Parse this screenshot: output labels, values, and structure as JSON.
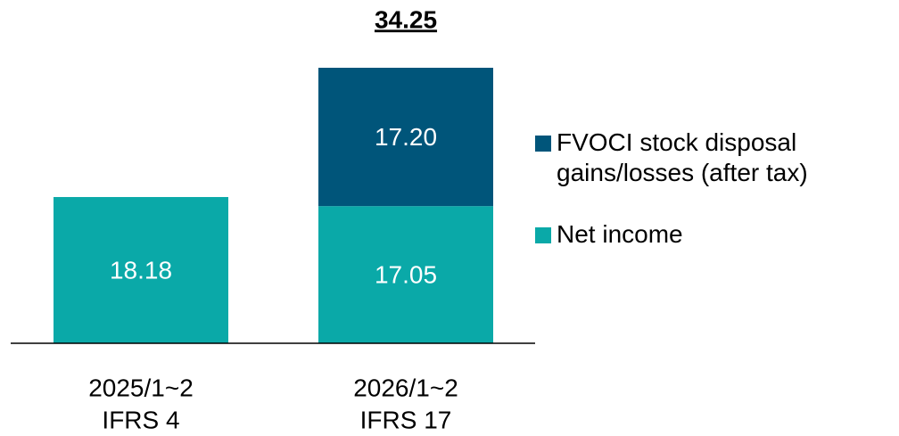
{
  "chart_data": {
    "type": "stacked_bar",
    "categories": [
      [
        "2025/1~2",
        "IFRS 4"
      ],
      [
        "2026/1~2",
        "IFRS 17"
      ]
    ],
    "series": [
      {
        "name": "Net income",
        "color": "#0aa9a8",
        "values": [
          18.18,
          17.05
        ]
      },
      {
        "name": "FVOCI stock disposal gains/losses (after tax)",
        "color": "#00557a",
        "values": [
          null,
          17.2
        ],
        "value_labels": [
          null,
          "17.20"
        ]
      }
    ],
    "totals": [
      null,
      34.25
    ]
  }
}
